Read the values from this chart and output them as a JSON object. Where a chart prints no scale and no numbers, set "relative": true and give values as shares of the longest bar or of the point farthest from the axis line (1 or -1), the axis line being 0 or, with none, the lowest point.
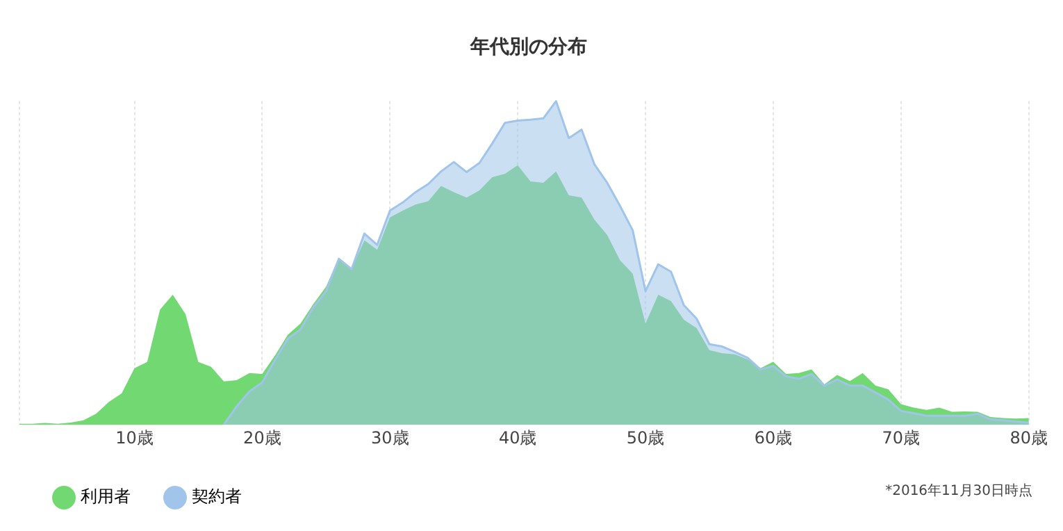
{
  "chart_data": {
    "type": "area",
    "title": "年代別の分布",
    "relative": true,
    "xlim": [
      1,
      80
    ],
    "xticks": [
      {
        "value": 1,
        "label": null
      },
      {
        "value": 10,
        "label": "10歳"
      },
      {
        "value": 20,
        "label": "20歳"
      },
      {
        "value": 30,
        "label": "30歳"
      },
      {
        "value": 40,
        "label": "40歳"
      },
      {
        "value": 50,
        "label": "50歳"
      },
      {
        "value": 60,
        "label": "60歳"
      },
      {
        "value": 70,
        "label": "70歳"
      },
      {
        "value": 80,
        "label": "80歳"
      }
    ],
    "grid": "x",
    "legend": "bottom left",
    "annotations": [
      "*2016年11月30日時点"
    ],
    "series": [
      {
        "name": "利用者",
        "color": "#72d872",
        "x": [
          1,
          2,
          3,
          4,
          5,
          6,
          7,
          8,
          9,
          10,
          11,
          12,
          13,
          14,
          15,
          16,
          17,
          18,
          19,
          20,
          21,
          22,
          23,
          24,
          25,
          26,
          27,
          28,
          29,
          30,
          31,
          32,
          33,
          34,
          35,
          36,
          37,
          38,
          39,
          40,
          41,
          42,
          43,
          44,
          45,
          46,
          47,
          48,
          49,
          50,
          51,
          52,
          53,
          54,
          55,
          56,
          57,
          58,
          59,
          60,
          61,
          62,
          63,
          64,
          65,
          66,
          67,
          68,
          69,
          70,
          71,
          72,
          73,
          74,
          75,
          76,
          77,
          78,
          79,
          80
        ],
        "values": [
          0.003,
          0.003,
          0.006,
          0.003,
          0.007,
          0.014,
          0.034,
          0.071,
          0.097,
          0.175,
          0.194,
          0.356,
          0.402,
          0.342,
          0.194,
          0.179,
          0.134,
          0.138,
          0.16,
          0.157,
          0.214,
          0.278,
          0.313,
          0.373,
          0.427,
          0.516,
          0.481,
          0.57,
          0.541,
          0.641,
          0.662,
          0.681,
          0.691,
          0.738,
          0.719,
          0.702,
          0.724,
          0.765,
          0.776,
          0.802,
          0.752,
          0.748,
          0.783,
          0.709,
          0.702,
          0.634,
          0.587,
          0.509,
          0.467,
          0.313,
          0.402,
          0.382,
          0.325,
          0.299,
          0.231,
          0.221,
          0.218,
          0.202,
          0.175,
          0.195,
          0.157,
          0.16,
          0.171,
          0.125,
          0.154,
          0.135,
          0.16,
          0.121,
          0.11,
          0.064,
          0.053,
          0.046,
          0.053,
          0.04,
          0.041,
          0.04,
          0.024,
          0.021,
          0.019,
          0.021
        ]
      },
      {
        "name": "契約者",
        "color": "#a0c4ea",
        "x": [
          17,
          18,
          19,
          20,
          21,
          22,
          23,
          24,
          25,
          26,
          27,
          28,
          29,
          30,
          31,
          32,
          33,
          34,
          35,
          36,
          37,
          38,
          39,
          40,
          41,
          42,
          43,
          44,
          45,
          46,
          47,
          48,
          49,
          50,
          51,
          52,
          53,
          54,
          55,
          56,
          57,
          58,
          59,
          60,
          61,
          62,
          63,
          64,
          65,
          66,
          67,
          68,
          69,
          70,
          71,
          72,
          73,
          74,
          75,
          76,
          77,
          78,
          79,
          80
        ],
        "values": [
          0,
          0.057,
          0.103,
          0.131,
          0.2,
          0.266,
          0.295,
          0.363,
          0.413,
          0.513,
          0.481,
          0.591,
          0.556,
          0.662,
          0.687,
          0.719,
          0.744,
          0.783,
          0.812,
          0.781,
          0.809,
          0.869,
          0.933,
          0.94,
          0.943,
          0.947,
          1,
          0.886,
          0.912,
          0.805,
          0.748,
          0.677,
          0.601,
          0.413,
          0.496,
          0.473,
          0.37,
          0.328,
          0.249,
          0.242,
          0.225,
          0.207,
          0.171,
          0.182,
          0.15,
          0.142,
          0.157,
          0.121,
          0.14,
          0.121,
          0.121,
          0.1,
          0.078,
          0.043,
          0.036,
          0.028,
          0.028,
          0.028,
          0.028,
          0.034,
          0.017,
          0.014,
          0.01,
          0.007
        ]
      }
    ]
  }
}
